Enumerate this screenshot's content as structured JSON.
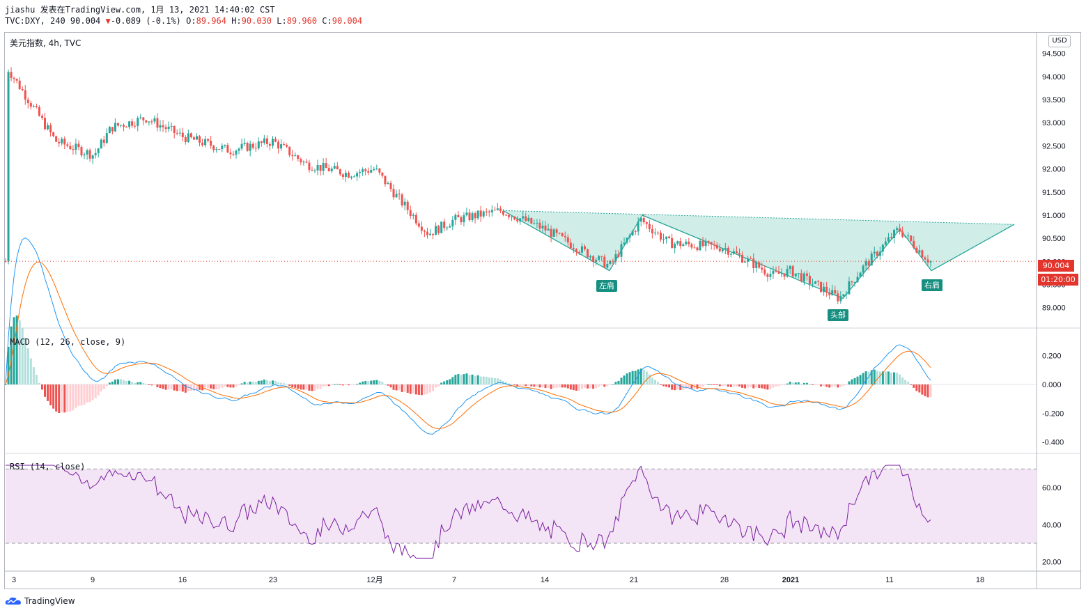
{
  "header": {
    "line1": "jiashu 发表在TradingView.com, 1月 13, 2021 14:40:02 CST",
    "symbol_info": "TVC:DXY, 240 90.004",
    "change_arrow": "▼",
    "change": "-0.089 (-0.1%)",
    "o_label": "O:",
    "o_value": "89.964",
    "h_label": "H:",
    "h_value": "90.030",
    "l_label": "L:",
    "l_value": "89.960",
    "c_label": "C:",
    "c_value": "90.004"
  },
  "main_pane": {
    "symbol_title": "美元指数, 4h, TVC",
    "currency_button": "USD",
    "last_price": "90.004",
    "countdown": "01:20:00",
    "price_ticks": [
      "94.500",
      "94.000",
      "93.500",
      "93.000",
      "92.500",
      "92.000",
      "91.500",
      "91.000",
      "90.500",
      "90.000",
      "89.500",
      "89.000"
    ],
    "pattern_labels": {
      "left_shoulder": "左肩",
      "head": "头部",
      "right_shoulder": "右肩"
    }
  },
  "macd_pane": {
    "title": "MACD (12, 26, close, 9)",
    "ticks": [
      "0.200",
      "0.000",
      "-0.200",
      "-0.400"
    ]
  },
  "rsi_pane": {
    "title": "RSI (14, close)",
    "ticks": [
      "60.00",
      "40.00",
      "20.00"
    ],
    "upper_band": 70,
    "lower_band": 30
  },
  "time_axis": {
    "labels": [
      "3",
      "9",
      "16",
      "23",
      "12月",
      "7",
      "14",
      "21",
      "28",
      "2021",
      "11",
      "18"
    ]
  },
  "footer": {
    "brand": "TradingView"
  },
  "colors": {
    "up": "#26a69a",
    "down": "#ef5350",
    "macd_line": "#2196f3",
    "signal_line": "#ff6d00",
    "rsi_line": "#7b1fa2",
    "rsi_band": "#f3e5f5",
    "pattern_fill": "#9ad8cc",
    "accent_red": "#e3352c"
  },
  "chart_data": {
    "type": "candlestick",
    "instrument": "TVC:DXY",
    "interval": "4h",
    "price_range": [
      88.8,
      94.6
    ],
    "macd_range": [
      -0.45,
      0.3
    ],
    "rsi_range": [
      15,
      75
    ],
    "last": {
      "open": 89.964,
      "high": 90.03,
      "low": 89.96,
      "close": 90.004,
      "change": -0.089,
      "change_pct": -0.1
    },
    "price_path": [
      {
        "date": "3",
        "price": 94.2
      },
      {
        "date": "5",
        "price": 93.4
      },
      {
        "date": "6",
        "price": 92.6
      },
      {
        "date": "9",
        "price": 92.3
      },
      {
        "date": "10",
        "price": 92.9
      },
      {
        "date": "12",
        "price": 93.1
      },
      {
        "date": "16",
        "price": 92.7
      },
      {
        "date": "19",
        "price": 92.4
      },
      {
        "date": "23",
        "price": 92.6
      },
      {
        "date": "25",
        "price": 92.1
      },
      {
        "date": "27",
        "price": 91.9
      },
      {
        "date": "12月",
        "price": 92.0
      },
      {
        "date": "2",
        "price": 91.4
      },
      {
        "date": "4",
        "price": 90.6
      },
      {
        "date": "7",
        "price": 90.9
      },
      {
        "date": "10",
        "price": 91.1
      },
      {
        "date": "14",
        "price": 90.7
      },
      {
        "date": "17",
        "price": 89.9
      },
      {
        "date": "21",
        "price": 90.9
      },
      {
        "date": "23",
        "price": 90.4
      },
      {
        "date": "28",
        "price": 90.3
      },
      {
        "date": "30",
        "price": 89.7
      },
      {
        "date": "2021",
        "price": 89.8
      },
      {
        "date": "6",
        "price": 89.2
      },
      {
        "date": "8",
        "price": 89.8
      },
      {
        "date": "11",
        "price": 90.7
      },
      {
        "date": "13",
        "price": 90.0
      }
    ],
    "pattern": {
      "name": "inverse head and shoulders",
      "points": [
        {
          "date": "10",
          "price": 91.1
        },
        {
          "date": "18",
          "price": 89.8
        },
        {
          "date": "21",
          "price": 91.0
        },
        {
          "date": "6",
          "price": 89.2
        },
        {
          "date": "11",
          "price": 90.7
        },
        {
          "date": "13",
          "price": 89.8
        },
        {
          "date": "20",
          "price": 90.8
        }
      ]
    }
  }
}
